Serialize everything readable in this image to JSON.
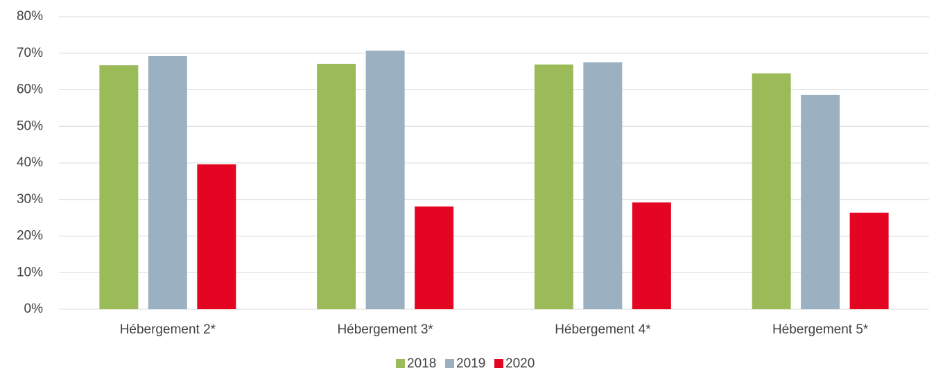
{
  "chart_data": {
    "type": "bar",
    "categories": [
      "Hébergement 2*",
      "Hébergement 3*",
      "Hébergement 4*",
      "Hébergement 5*"
    ],
    "series": [
      {
        "name": "2018",
        "color": "#9bbb59",
        "values": [
          66.7,
          67.1,
          66.9,
          64.5
        ]
      },
      {
        "name": "2019",
        "color": "#9bb0c1",
        "values": [
          69.2,
          70.7,
          67.5,
          58.6
        ]
      },
      {
        "name": "2020",
        "color": "#e30521",
        "values": [
          39.6,
          28.1,
          29.2,
          26.4
        ]
      }
    ],
    "ylim": [
      0,
      80
    ],
    "yticks": [
      {
        "value": 0,
        "label": "0%"
      },
      {
        "value": 10,
        "label": "10%"
      },
      {
        "value": 20,
        "label": "20%"
      },
      {
        "value": 30,
        "label": "30%"
      },
      {
        "value": 40,
        "label": "40%"
      },
      {
        "value": 50,
        "label": "50%"
      },
      {
        "value": 60,
        "label": "60%"
      },
      {
        "value": 70,
        "label": "70%"
      },
      {
        "value": 80,
        "label": "80%"
      }
    ],
    "grid": true,
    "legend": "bottom"
  }
}
